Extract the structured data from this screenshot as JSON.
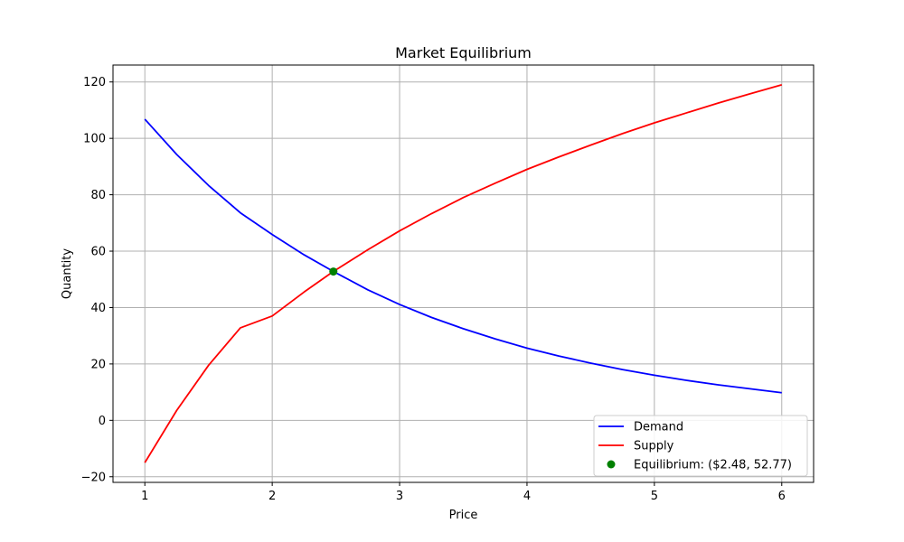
{
  "chart_data": {
    "type": "line",
    "title": "Market Equilibrium",
    "xlabel": "Price",
    "ylabel": "Quantity",
    "xlim": [
      0.75,
      6.25
    ],
    "ylim": [
      -22,
      126
    ],
    "xticks": [
      1,
      2,
      3,
      4,
      5,
      6
    ],
    "yticks": [
      -20,
      0,
      20,
      40,
      60,
      80,
      100,
      120
    ],
    "xtick_labels": [
      "1",
      "2",
      "3",
      "4",
      "5",
      "6"
    ],
    "ytick_labels": [
      "−20",
      "0",
      "20",
      "40",
      "60",
      "80",
      "100",
      "120"
    ],
    "grid": true,
    "legend_position": "lower-right",
    "series": [
      {
        "name": "Demand",
        "color": "#0000ff",
        "x": [
          1.0,
          1.25,
          1.5,
          1.75,
          2.0,
          2.25,
          2.48,
          2.75,
          3.0,
          3.25,
          3.5,
          3.75,
          4.0,
          4.25,
          4.5,
          4.75,
          5.0,
          5.25,
          5.5,
          5.75,
          6.0
        ],
        "y": [
          106.8,
          94.3,
          83.3,
          73.6,
          65.9,
          58.7,
          52.8,
          46.3,
          41.1,
          36.5,
          32.5,
          28.9,
          25.6,
          22.8,
          20.3,
          18.0,
          16.0,
          14.2,
          12.6,
          11.2,
          9.8
        ]
      },
      {
        "name": "Supply",
        "color": "#ff0000",
        "x": [
          1.0,
          1.25,
          1.5,
          1.75,
          2.0,
          2.25,
          2.48,
          2.75,
          3.0,
          3.25,
          3.5,
          3.75,
          4.0,
          4.25,
          4.5,
          4.75,
          5.0,
          5.25,
          5.5,
          5.75,
          6.0
        ],
        "y": [
          -15.0,
          3.5,
          19.5,
          32.8,
          37.0,
          45.5,
          52.8,
          60.5,
          67.2,
          73.3,
          79.0,
          84.1,
          89.0,
          93.4,
          97.6,
          101.7,
          105.5,
          109.0,
          112.5,
          115.8,
          119.0
        ]
      }
    ],
    "points": [
      {
        "name": "Equilibrium: ($2.48, 52.77)",
        "color": "#008000",
        "x": 2.48,
        "y": 52.77
      }
    ]
  }
}
